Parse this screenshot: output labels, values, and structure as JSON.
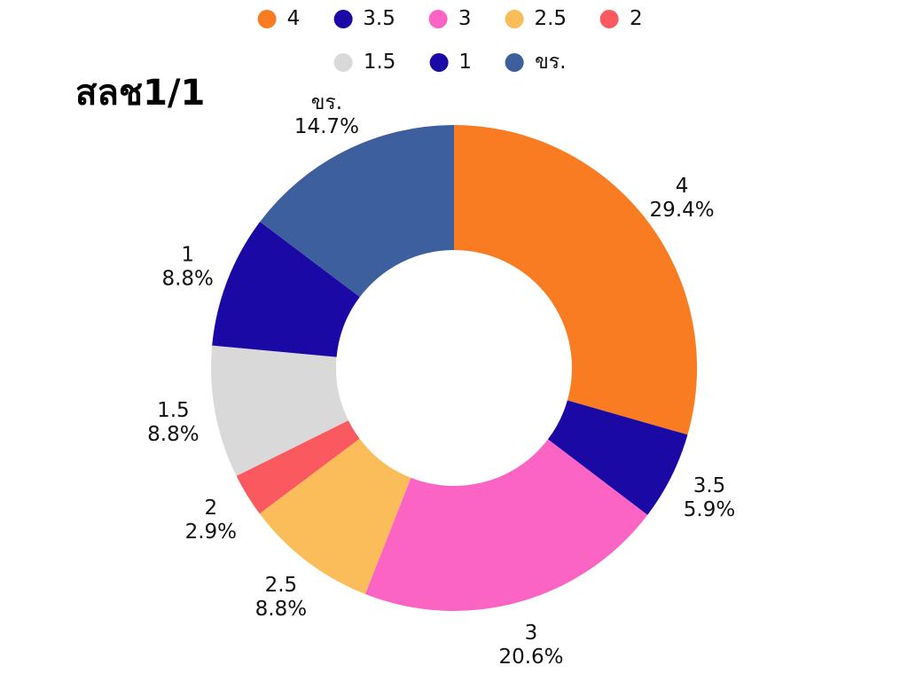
{
  "page": {
    "title": "สลช1/1"
  },
  "chart_data": {
    "type": "pie",
    "subtype": "donut",
    "title": "สลช1/1",
    "start_angle_deg": 0,
    "direction": "clockwise",
    "hole_ratio": 0.485,
    "label_format": "name above percent, outside slices",
    "legend_position": "top-center, two rows",
    "slices": [
      {
        "label": "4",
        "percent": 29.4,
        "color": "#F97C22"
      },
      {
        "label": "3.5",
        "percent": 5.9,
        "color": "#1B09A6"
      },
      {
        "label": "3",
        "percent": 20.6,
        "color": "#FC64C4"
      },
      {
        "label": "2.5",
        "percent": 8.8,
        "color": "#FBBD5A"
      },
      {
        "label": "2",
        "percent": 2.9,
        "color": "#FA5A5F"
      },
      {
        "label": "1.5",
        "percent": 8.8,
        "color": "#D9D9DA"
      },
      {
        "label": "1",
        "percent": 8.8,
        "color": "#1B09A6"
      },
      {
        "label": "ขร.",
        "percent": 14.7,
        "color": "#3E5F9E"
      }
    ],
    "legend_rows": [
      [
        "4",
        "3.5",
        "3",
        "2.5",
        "2"
      ],
      [
        "1.5",
        "1",
        "ขร."
      ]
    ],
    "text_color": "#111111",
    "background_color": "#FFFFFF"
  }
}
